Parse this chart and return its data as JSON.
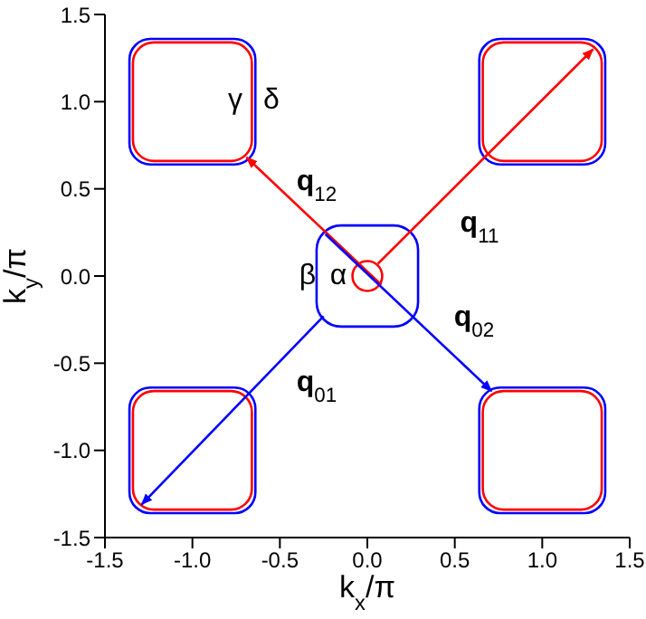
{
  "chart_data": {
    "type": "line",
    "xlabel": "k$_{x}$/π",
    "ylabel": "k$_{y}$/π",
    "xlim": [
      -1.5,
      1.5
    ],
    "ylim": [
      -1.5,
      1.5
    ],
    "xticks": [
      -1.5,
      {
        "value": -1.0,
        "label": "-1.0"
      },
      -0.5,
      {
        "value": 0,
        "label": "0.0"
      },
      0.5,
      {
        "value": 1.0,
        "label": "1.0"
      },
      1.5
    ],
    "yticks": [
      -1.5,
      {
        "value": -1.0,
        "label": "-1.0"
      },
      -0.5,
      {
        "value": 0,
        "label": "0.0"
      },
      0.5,
      {
        "value": 1.0,
        "label": "1.0"
      },
      1.5
    ],
    "marker": "none",
    "line_style": "solid",
    "series": [
      {
        "color": "#ff0000",
        "x": [
          0.08,
          -0.69
        ],
        "values": [
          -0.05,
          0.68
        ]
      },
      {
        "color": "#ff0000",
        "x": [
          0.06,
          1.29
        ],
        "values": [
          0.07,
          1.3
        ]
      },
      {
        "color": "#0000ff",
        "x": [
          -0.25,
          -1.29
        ],
        "values": [
          -0.23,
          -1.31
        ]
      },
      {
        "color": "#0000ff",
        "x": [
          -0.24,
          0.71
        ],
        "values": [
          0.24,
          -0.66
        ]
      }
    ],
    "annotations": [
      "γ",
      "δ",
      "β",
      "α",
      "q$_{12}$",
      "q$_{11}$",
      "q$_{01}$",
      "q$_{02}$"
    ]
  }
}
